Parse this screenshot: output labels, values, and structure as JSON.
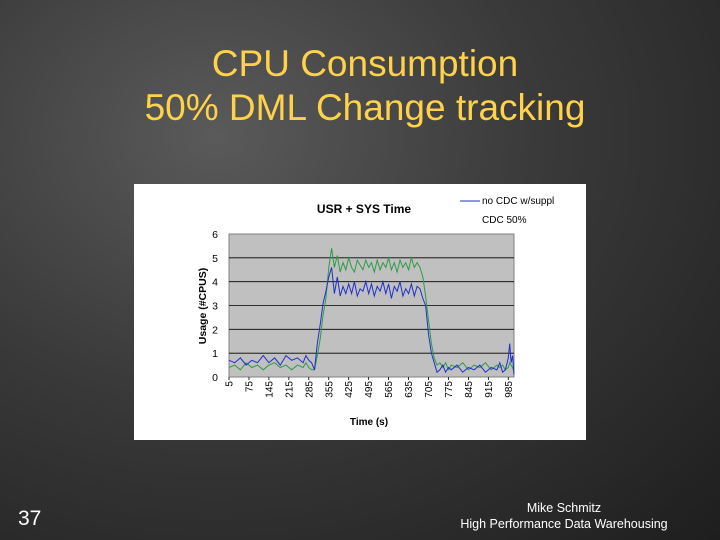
{
  "slide": {
    "title_line1": "CPU Consumption",
    "title_line2": "50% DML Change tracking",
    "number": "37",
    "footer_line1": "Mike Schmitz",
    "footer_line2": "High Performance Data Warehousing"
  },
  "chart_data": {
    "type": "line",
    "title": "USR + SYS Time",
    "xlabel": "Time (s)",
    "ylabel": "Usage (#CPUS)",
    "ylim": [
      0,
      6
    ],
    "xlim": [
      5,
      1005
    ],
    "y_ticks": [
      "0",
      "1",
      "2",
      "3",
      "4",
      "5",
      "6"
    ],
    "x_ticks": [
      "5",
      "75",
      "145",
      "215",
      "285",
      "355",
      "425",
      "495",
      "565",
      "635",
      "705",
      "775",
      "845",
      "915",
      "985"
    ],
    "legend_position": "top-right",
    "series": [
      {
        "name": "no CDC w/suppl",
        "color": "#1f2fc8",
        "x": [
          5,
          25,
          45,
          65,
          85,
          105,
          125,
          145,
          165,
          185,
          205,
          225,
          245,
          265,
          275,
          285,
          295,
          305,
          315,
          325,
          335,
          345,
          355,
          365,
          375,
          385,
          395,
          405,
          415,
          425,
          435,
          445,
          455,
          465,
          475,
          485,
          495,
          505,
          515,
          525,
          535,
          545,
          555,
          565,
          575,
          585,
          595,
          605,
          615,
          625,
          635,
          645,
          655,
          665,
          675,
          685,
          695,
          705,
          715,
          725,
          735,
          745,
          755,
          765,
          775,
          785,
          805,
          825,
          845,
          865,
          885,
          905,
          925,
          945,
          955,
          965,
          975,
          985,
          990,
          995,
          1000,
          1005
        ],
        "values": [
          0.7,
          0.6,
          0.8,
          0.5,
          0.7,
          0.6,
          0.9,
          0.6,
          0.8,
          0.5,
          0.9,
          0.7,
          0.8,
          0.6,
          0.9,
          0.7,
          0.6,
          0.3,
          1.4,
          2.2,
          3.1,
          3.6,
          4.2,
          4.6,
          3.5,
          4.2,
          3.4,
          3.8,
          3.5,
          3.9,
          3.5,
          4.0,
          3.4,
          3.7,
          3.6,
          4.0,
          3.5,
          3.9,
          3.4,
          3.8,
          3.6,
          4.0,
          3.5,
          3.9,
          3.3,
          3.8,
          3.6,
          4.0,
          3.4,
          3.7,
          3.5,
          3.9,
          3.4,
          3.8,
          3.7,
          3.3,
          3.0,
          1.8,
          1.0,
          0.6,
          0.2,
          0.3,
          0.5,
          0.2,
          0.4,
          0.3,
          0.5,
          0.2,
          0.4,
          0.3,
          0.5,
          0.2,
          0.4,
          0.3,
          0.6,
          0.2,
          0.3,
          0.8,
          1.4,
          0.6,
          0.9,
          0.1
        ]
      },
      {
        "name": "CDC 50%",
        "color": "#2f9a46",
        "x": [
          5,
          25,
          45,
          65,
          85,
          105,
          125,
          145,
          165,
          185,
          205,
          225,
          245,
          265,
          275,
          285,
          295,
          305,
          315,
          325,
          335,
          345,
          355,
          365,
          375,
          385,
          395,
          405,
          415,
          425,
          435,
          445,
          455,
          465,
          475,
          485,
          495,
          505,
          515,
          525,
          535,
          545,
          555,
          565,
          575,
          585,
          595,
          605,
          615,
          625,
          635,
          645,
          655,
          665,
          675,
          685,
          695,
          705,
          715,
          725,
          735,
          745,
          755,
          765,
          775,
          785,
          805,
          825,
          845,
          865,
          885,
          905,
          925,
          945,
          955,
          965,
          975,
          985,
          990,
          995,
          1000,
          1005
        ],
        "values": [
          0.4,
          0.5,
          0.3,
          0.6,
          0.4,
          0.5,
          0.3,
          0.5,
          0.6,
          0.4,
          0.5,
          0.3,
          0.5,
          0.4,
          0.6,
          0.4,
          0.3,
          0.3,
          0.9,
          1.6,
          2.6,
          3.3,
          4.6,
          5.4,
          4.6,
          5.1,
          4.4,
          4.8,
          4.5,
          5.0,
          4.6,
          4.4,
          4.9,
          4.7,
          4.5,
          4.9,
          4.6,
          4.8,
          4.4,
          4.9,
          4.5,
          4.8,
          4.6,
          5.0,
          4.5,
          4.8,
          4.4,
          4.9,
          4.6,
          4.8,
          4.5,
          5.0,
          4.6,
          4.8,
          4.6,
          4.2,
          3.4,
          2.4,
          1.4,
          0.8,
          0.5,
          0.6,
          0.4,
          0.6,
          0.3,
          0.5,
          0.4,
          0.6,
          0.3,
          0.5,
          0.4,
          0.6,
          0.3,
          0.5,
          0.4,
          0.5,
          0.3,
          0.4,
          0.6,
          0.5,
          0.4,
          0.2
        ]
      }
    ]
  }
}
